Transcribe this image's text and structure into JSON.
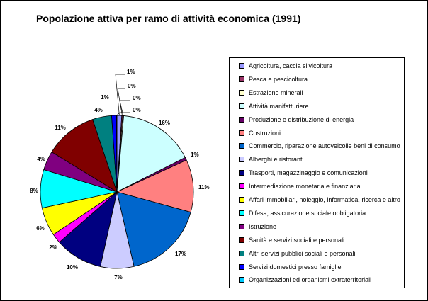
{
  "chart_data": {
    "type": "pie",
    "title": "Popolazione attiva per ramo di attività economica (1991)",
    "start_angle_deg": 0,
    "direction": "clockwise",
    "legend_placement": "right",
    "slices": [
      {
        "label": "Agricoltura, caccia silvicoltura",
        "value": 1,
        "display": "1%",
        "color": "#9999ff"
      },
      {
        "label": "Pesca e pescicoltura",
        "value": 0.2,
        "display": "0%",
        "color": "#993366"
      },
      {
        "label": "Estrazione minerali",
        "value": 0.2,
        "display": "0%",
        "color": "#ffffcc"
      },
      {
        "label": "Attività manifatturiere",
        "value": 16,
        "display": "16%",
        "color": "#ccffff"
      },
      {
        "label": "Produzione e distribuzione di energia",
        "value": 0.6,
        "display": "1%",
        "color": "#660066"
      },
      {
        "label": "Costruzioni",
        "value": 11,
        "display": "11%",
        "color": "#ff8080"
      },
      {
        "label": "Commercio, riparazione autoveicolie beni di consumo",
        "value": 17,
        "display": "17%",
        "color": "#0066cc"
      },
      {
        "label": "Alberghi e ristoranti",
        "value": 7,
        "display": "7%",
        "color": "#ccccff"
      },
      {
        "label": "Trasporti, magazzinaggio e comunicazioni",
        "value": 10,
        "display": "10%",
        "color": "#000080"
      },
      {
        "label": "Intermediazione monetaria e finanziaria",
        "value": 2,
        "display": "2%",
        "color": "#ff00ff"
      },
      {
        "label": "Affari immobiliari, noleggio, informatica, ricerca e altro",
        "value": 6,
        "display": "6%",
        "color": "#ffff00"
      },
      {
        "label": "Difesa, assicurazione sociale obbligatoria",
        "value": 8,
        "display": "8%",
        "color": "#00ffff"
      },
      {
        "label": "Istruzione",
        "value": 4,
        "display": "4%",
        "color": "#800080"
      },
      {
        "label": "Sanità e servizi sociali e personali",
        "value": 11,
        "display": "11%",
        "color": "#800000"
      },
      {
        "label": "Altri servizi pubblici sociali e personali",
        "value": 4,
        "display": "4%",
        "color": "#008080"
      },
      {
        "label": "Servizi domestici presso famiglie",
        "value": 1,
        "display": "1%",
        "color": "#0000ff"
      },
      {
        "label": "Organizzazioni ed organismi extraterritoriali",
        "value": 0.1,
        "display": "0%",
        "color": "#00ccff"
      }
    ]
  }
}
